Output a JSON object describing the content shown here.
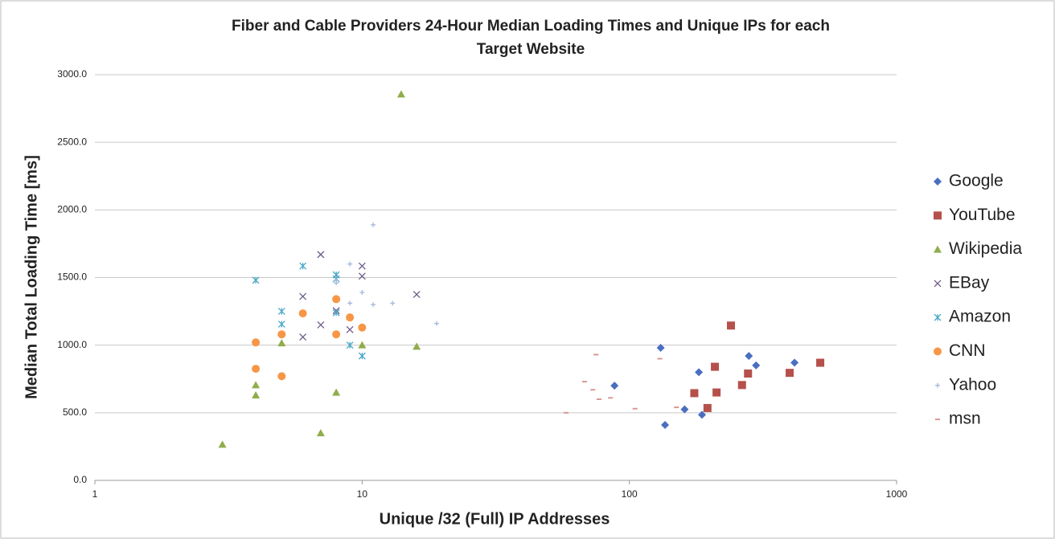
{
  "chart_data": {
    "type": "scatter",
    "title": "Fiber and Cable Providers 24-Hour Median Loading Times and Unique IPs for each Target Website",
    "x_label": "Unique /32 (Full) IP Addresses",
    "y_label": "Median Total Loading Time [ms]",
    "x_scale": "log",
    "grid": true,
    "legend_position": "right",
    "xlim": [
      1,
      1000
    ],
    "xticks": [
      1,
      10,
      100,
      1000
    ],
    "ylim": [
      0,
      3000
    ],
    "yticks": [
      {
        "value": 0,
        "label": "0.0"
      },
      {
        "value": 500,
        "label": "500.0"
      },
      {
        "value": 1000,
        "label": "1000.0"
      },
      {
        "value": 1500,
        "label": "1500.0"
      },
      {
        "value": 2000,
        "label": "2000.0"
      },
      {
        "value": 2500,
        "label": "2500.0"
      },
      {
        "value": 3000,
        "label": "3000.0"
      }
    ],
    "series": [
      {
        "name": "Google",
        "color": "#4a6fc0",
        "marker": "diamond",
        "x": [
          88,
          131,
          136,
          161,
          182,
          187,
          280,
          298,
          415
        ],
        "values": [
          700,
          980,
          410,
          525,
          800,
          485,
          920,
          850,
          870
        ]
      },
      {
        "name": "YouTube",
        "color": "#b5504b",
        "marker": "square",
        "x": [
          175,
          196,
          209,
          212,
          240,
          264,
          278,
          398,
          518
        ],
        "values": [
          645,
          535,
          840,
          650,
          1145,
          705,
          790,
          795,
          870
        ]
      },
      {
        "name": "Wikipedia",
        "color": "#8fad4a",
        "marker": "triangle",
        "x": [
          3,
          4,
          4,
          5,
          7,
          8,
          10,
          14,
          16
        ],
        "values": [
          265,
          630,
          705,
          1015,
          350,
          650,
          1000,
          2855,
          990
        ]
      },
      {
        "name": "EBay",
        "color": "#6e5a8a",
        "marker": "cross",
        "x": [
          6,
          6,
          7,
          7,
          8,
          9,
          10,
          10,
          16
        ],
        "values": [
          1060,
          1360,
          1670,
          1150,
          1255,
          1115,
          1510,
          1585,
          1375
        ]
      },
      {
        "name": "Amazon",
        "color": "#4aa6c6",
        "marker": "asterisk",
        "x": [
          4,
          5,
          5,
          6,
          8,
          8,
          8,
          9,
          10
        ],
        "values": [
          1480,
          1250,
          1155,
          1585,
          1520,
          1490,
          1240,
          1000,
          920
        ]
      },
      {
        "name": "CNN",
        "color": "#f79646",
        "marker": "circle",
        "x": [
          4,
          4,
          5,
          5,
          6,
          8,
          8,
          9,
          10
        ],
        "values": [
          1020,
          825,
          1080,
          770,
          1235,
          1340,
          1080,
          1205,
          1130
        ]
      },
      {
        "name": "Yahoo",
        "color": "#a3b8da",
        "marker": "plus",
        "x": [
          8,
          8,
          9,
          9,
          10,
          11,
          11,
          13,
          19
        ],
        "values": [
          1480,
          1460,
          1310,
          1600,
          1390,
          1300,
          1890,
          1310,
          1160
        ]
      },
      {
        "name": "msn",
        "color": "#d99795",
        "marker": "dash",
        "x": [
          58,
          68,
          73,
          75,
          77,
          85,
          105,
          130,
          150
        ],
        "values": [
          500,
          730,
          670,
          930,
          600,
          610,
          530,
          900,
          540
        ]
      }
    ]
  }
}
